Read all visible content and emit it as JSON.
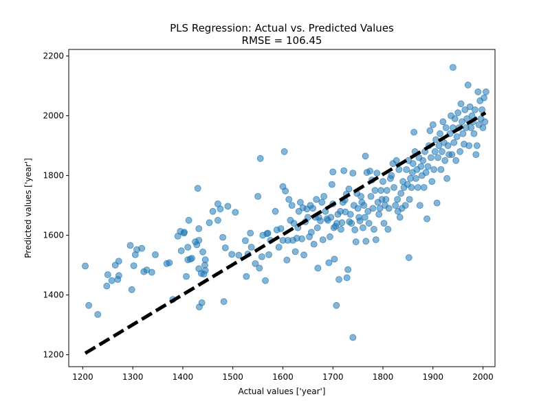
{
  "chart_data": {
    "type": "scatter",
    "title": "PLS Regression: Actual vs. Predicted Values",
    "subtitle": "RMSE = 106.45",
    "xlabel": "Actual values ['year']",
    "ylabel": "Predicted values ['year']",
    "xlim": [
      1172,
      2024
    ],
    "ylim": [
      1160,
      2222
    ],
    "xticks": [
      "1200",
      "1300",
      "1400",
      "1500",
      "1600",
      "1700",
      "1800",
      "1900",
      "2000"
    ],
    "yticks": [
      "1200",
      "1400",
      "1600",
      "1800",
      "2000",
      "2200"
    ],
    "grid": false,
    "point_color": "#1f77b4",
    "line_color": "#000000",
    "reference_line": {
      "x": [
        1205,
        2005
      ],
      "y": [
        1205,
        2010
      ]
    },
    "points": [
      [
        1205,
        1497
      ],
      [
        1212,
        1365
      ],
      [
        1230,
        1335
      ],
      [
        1248,
        1430
      ],
      [
        1250,
        1468
      ],
      [
        1258,
        1448
      ],
      [
        1265,
        1500
      ],
      [
        1270,
        1452
      ],
      [
        1272,
        1465
      ],
      [
        1272,
        1513
      ],
      [
        1295,
        1566
      ],
      [
        1298,
        1418
      ],
      [
        1302,
        1498
      ],
      [
        1305,
        1535
      ],
      [
        1308,
        1552
      ],
      [
        1318,
        1556
      ],
      [
        1322,
        1478
      ],
      [
        1328,
        1484
      ],
      [
        1338,
        1476
      ],
      [
        1345,
        1535
      ],
      [
        1368,
        1505
      ],
      [
        1373,
        1508
      ],
      [
        1380,
        1385
      ],
      [
        1390,
        1597
      ],
      [
        1395,
        1613
      ],
      [
        1397,
        1548
      ],
      [
        1402,
        1607
      ],
      [
        1403,
        1610
      ],
      [
        1407,
        1462
      ],
      [
        1410,
        1518
      ],
      [
        1410,
        1560
      ],
      [
        1412,
        1650
      ],
      [
        1415,
        1520
      ],
      [
        1418,
        1523
      ],
      [
        1425,
        1578
      ],
      [
        1428,
        1568
      ],
      [
        1430,
        1757
      ],
      [
        1432,
        1488
      ],
      [
        1432,
        1622
      ],
      [
        1432,
        1583
      ],
      [
        1433,
        1360
      ],
      [
        1437,
        1472
      ],
      [
        1438,
        1374
      ],
      [
        1440,
        1544
      ],
      [
        1442,
        1470
      ],
      [
        1444,
        1500
      ],
      [
        1445,
        1518
      ],
      [
        1445,
        1482
      ],
      [
        1453,
        1642
      ],
      [
        1460,
        1680
      ],
      [
        1470,
        1705
      ],
      [
        1470,
        1650
      ],
      [
        1475,
        1688
      ],
      [
        1480,
        1593
      ],
      [
        1482,
        1378
      ],
      [
        1485,
        1558
      ],
      [
        1490,
        1697
      ],
      [
        1498,
        1536
      ],
      [
        1505,
        1677
      ],
      [
        1512,
        1533
      ],
      [
        1525,
        1582
      ],
      [
        1527,
        1462
      ],
      [
        1530,
        1537
      ],
      [
        1535,
        1607
      ],
      [
        1537,
        1560
      ],
      [
        1545,
        1505
      ],
      [
        1550,
        1730
      ],
      [
        1553,
        1490
      ],
      [
        1555,
        1857
      ],
      [
        1558,
        1528
      ],
      [
        1560,
        1600
      ],
      [
        1565,
        1448
      ],
      [
        1568,
        1605
      ],
      [
        1570,
        1607
      ],
      [
        1572,
        1535
      ],
      [
        1575,
        1583
      ],
      [
        1585,
        1680
      ],
      [
        1588,
        1618
      ],
      [
        1592,
        1560
      ],
      [
        1596,
        1622
      ],
      [
        1600,
        1763
      ],
      [
        1600,
        1583
      ],
      [
        1603,
        1880
      ],
      [
        1605,
        1748
      ],
      [
        1608,
        1517
      ],
      [
        1610,
        1583
      ],
      [
        1612,
        1720
      ],
      [
        1615,
        1650
      ],
      [
        1618,
        1700
      ],
      [
        1620,
        1583
      ],
      [
        1622,
        1640
      ],
      [
        1625,
        1545
      ],
      [
        1628,
        1590
      ],
      [
        1630,
        1625
      ],
      [
        1632,
        1680
      ],
      [
        1635,
        1710
      ],
      [
        1638,
        1588
      ],
      [
        1640,
        1692
      ],
      [
        1642,
        1534
      ],
      [
        1645,
        1645
      ],
      [
        1648,
        1688
      ],
      [
        1650,
        1660
      ],
      [
        1653,
        1595
      ],
      [
        1655,
        1700
      ],
      [
        1657,
        1610
      ],
      [
        1660,
        1690
      ],
      [
        1662,
        1570
      ],
      [
        1665,
        1660
      ],
      [
        1667,
        1720
      ],
      [
        1669,
        1625
      ],
      [
        1670,
        1490
      ],
      [
        1672,
        1660
      ],
      [
        1675,
        1648
      ],
      [
        1678,
        1710
      ],
      [
        1680,
        1585
      ],
      [
        1682,
        1730
      ],
      [
        1685,
        1680
      ],
      [
        1688,
        1655
      ],
      [
        1690,
        1650
      ],
      [
        1692,
        1508
      ],
      [
        1694,
        1595
      ],
      [
        1696,
        1660
      ],
      [
        1698,
        1770
      ],
      [
        1700,
        1812
      ],
      [
        1700,
        1705
      ],
      [
        1702,
        1625
      ],
      [
        1703,
        1520
      ],
      [
        1705,
        1630
      ],
      [
        1707,
        1365
      ],
      [
        1708,
        1640
      ],
      [
        1710,
        1670
      ],
      [
        1712,
        1452
      ],
      [
        1715,
        1680
      ],
      [
        1716,
        1620
      ],
      [
        1718,
        1642
      ],
      [
        1720,
        1710
      ],
      [
        1722,
        1816
      ],
      [
        1724,
        1718
      ],
      [
        1725,
        1678
      ],
      [
        1727,
        1738
      ],
      [
        1728,
        1458
      ],
      [
        1730,
        1485
      ],
      [
        1732,
        1755
      ],
      [
        1733,
        1645
      ],
      [
        1735,
        1670
      ],
      [
        1737,
        1640
      ],
      [
        1740,
        1258
      ],
      [
        1740,
        1808
      ],
      [
        1742,
        1700
      ],
      [
        1744,
        1618
      ],
      [
        1746,
        1578
      ],
      [
        1748,
        1740
      ],
      [
        1750,
        1690
      ],
      [
        1752,
        1660
      ],
      [
        1754,
        1648
      ],
      [
        1756,
        1730
      ],
      [
        1758,
        1710
      ],
      [
        1760,
        1625
      ],
      [
        1762,
        1700
      ],
      [
        1764,
        1660
      ],
      [
        1765,
        1865
      ],
      [
        1766,
        1580
      ],
      [
        1768,
        1810
      ],
      [
        1770,
        1680
      ],
      [
        1772,
        1640
      ],
      [
        1774,
        1815
      ],
      [
        1776,
        1730
      ],
      [
        1778,
        1785
      ],
      [
        1780,
        1690
      ],
      [
        1782,
        1620
      ],
      [
        1784,
        1750
      ],
      [
        1786,
        1585
      ],
      [
        1788,
        1808
      ],
      [
        1790,
        1710
      ],
      [
        1792,
        1670
      ],
      [
        1794,
        1690
      ],
      [
        1796,
        1750
      ],
      [
        1798,
        1720
      ],
      [
        1800,
        1780
      ],
      [
        1802,
        1640
      ],
      [
        1804,
        1700
      ],
      [
        1806,
        1720
      ],
      [
        1808,
        1750
      ],
      [
        1810,
        1620
      ],
      [
        1812,
        1690
      ],
      [
        1815,
        1790
      ],
      [
        1817,
        1800
      ],
      [
        1820,
        1840
      ],
      [
        1822,
        1760
      ],
      [
        1825,
        1700
      ],
      [
        1827,
        1850
      ],
      [
        1829,
        1720
      ],
      [
        1830,
        1680
      ],
      [
        1832,
        1820
      ],
      [
        1834,
        1660
      ],
      [
        1836,
        1740
      ],
      [
        1838,
        1690
      ],
      [
        1840,
        1780
      ],
      [
        1842,
        1760
      ],
      [
        1845,
        1700
      ],
      [
        1847,
        1820
      ],
      [
        1849,
        1770
      ],
      [
        1851,
        1850
      ],
      [
        1852,
        1525
      ],
      [
        1853,
        1720
      ],
      [
        1855,
        1790
      ],
      [
        1857,
        1760
      ],
      [
        1859,
        1810
      ],
      [
        1860,
        1840
      ],
      [
        1862,
        1945
      ],
      [
        1864,
        1880
      ],
      [
        1866,
        1790
      ],
      [
        1868,
        1820
      ],
      [
        1870,
        1760
      ],
      [
        1872,
        1860
      ],
      [
        1874,
        1700
      ],
      [
        1876,
        1830
      ],
      [
        1878,
        1800
      ],
      [
        1880,
        1850
      ],
      [
        1882,
        1760
      ],
      [
        1884,
        1880
      ],
      [
        1886,
        1810
      ],
      [
        1888,
        1655
      ],
      [
        1890,
        1830
      ],
      [
        1892,
        1900
      ],
      [
        1894,
        1950
      ],
      [
        1896,
        1860
      ],
      [
        1898,
        1780
      ],
      [
        1900,
        1970
      ],
      [
        1902,
        1820
      ],
      [
        1904,
        1880
      ],
      [
        1906,
        1920
      ],
      [
        1908,
        1708
      ],
      [
        1910,
        1860
      ],
      [
        1912,
        1900
      ],
      [
        1914,
        1940
      ],
      [
        1916,
        1820
      ],
      [
        1918,
        1880
      ],
      [
        1920,
        1980
      ],
      [
        1922,
        1910
      ],
      [
        1924,
        1850
      ],
      [
        1926,
        1960
      ],
      [
        1928,
        1790
      ],
      [
        1930,
        1900
      ],
      [
        1932,
        1870
      ],
      [
        1934,
        1940
      ],
      [
        1936,
        2000
      ],
      [
        1938,
        1870
      ],
      [
        1940,
        2162
      ],
      [
        1940,
        1960
      ],
      [
        1942,
        1910
      ],
      [
        1944,
        1990
      ],
      [
        1946,
        1850
      ],
      [
        1948,
        1930
      ],
      [
        1950,
        2010
      ],
      [
        1952,
        1960
      ],
      [
        1954,
        1880
      ],
      [
        1956,
        2040
      ],
      [
        1958,
        1980
      ],
      [
        1960,
        1940
      ],
      [
        1962,
        1905
      ],
      [
        1964,
        2020
      ],
      [
        1966,
        1960
      ],
      [
        1968,
        1990
      ],
      [
        1970,
        2103
      ],
      [
        1972,
        1900
      ],
      [
        1974,
        2030
      ],
      [
        1976,
        1960
      ],
      [
        1978,
        2000
      ],
      [
        1980,
        1980
      ],
      [
        1982,
        1940
      ],
      [
        1984,
        2020
      ],
      [
        1986,
        1870
      ],
      [
        1988,
        1900
      ],
      [
        1990,
        2080
      ],
      [
        1992,
        1970
      ],
      [
        1994,
        2050
      ],
      [
        1996,
        1990
      ],
      [
        1998,
        2020
      ],
      [
        2000,
        1960
      ],
      [
        2002,
        2060
      ],
      [
        2004,
        1980
      ],
      [
        2006,
        2080
      ]
    ]
  }
}
